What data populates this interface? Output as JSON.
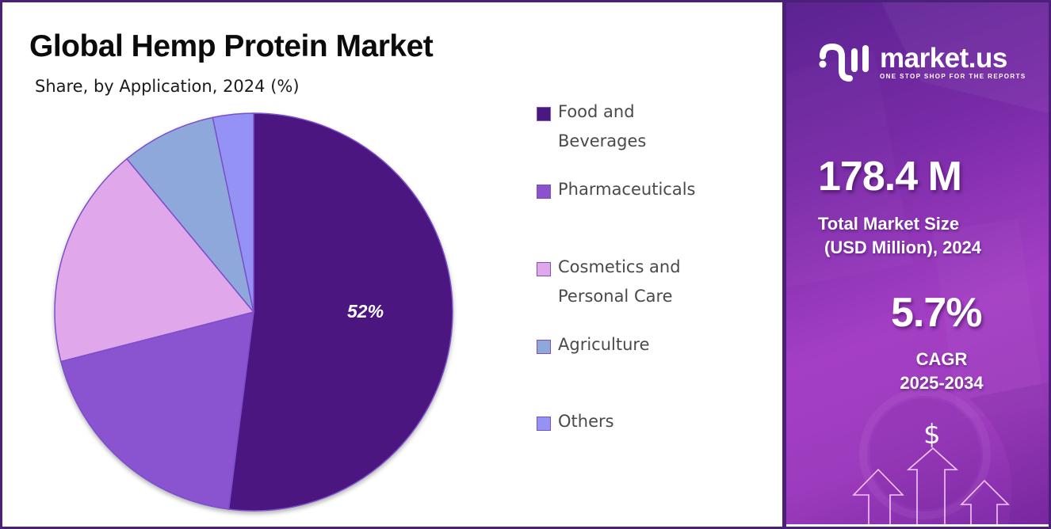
{
  "header": {
    "title": "Global Hemp Protein Market",
    "subtitle": "Share, by Application, 2024 (%)"
  },
  "chart_data": {
    "type": "pie",
    "title": "Global Hemp Protein Market",
    "subtitle": "Share, by Application, 2024 (%)",
    "categories": [
      "Food and Beverages",
      "Pharmaceuticals",
      "Cosmetics and Personal Care",
      "Agriculture",
      "Others"
    ],
    "values": [
      52,
      19,
      18,
      7.7,
      3.3
    ],
    "colors": [
      "#4b1880",
      "#8a52cf",
      "#e0a8ea",
      "#8fa8dc",
      "#9592f5"
    ],
    "data_labels": [
      {
        "category": "Food and Beverages",
        "text": "52%"
      }
    ],
    "start_angle": "12 o'clock, clockwise",
    "legend_position": "right"
  },
  "pie": {
    "label": "52%"
  },
  "legend": {
    "items": [
      {
        "line1": "Food and",
        "line2": "Beverages",
        "color": "#4b1880"
      },
      {
        "line1": "Pharmaceuticals",
        "line2": "",
        "color": "#8a52cf"
      },
      {
        "line1": "Cosmetics and",
        "line2": "Personal Care",
        "color": "#e0a8ea"
      },
      {
        "line1": "Agriculture",
        "line2": "",
        "color": "#8fa8dc"
      },
      {
        "line1": "Others",
        "line2": "",
        "color": "#9592f5"
      }
    ]
  },
  "sidebar": {
    "brand": "market.us",
    "tagline": "ONE STOP SHOP FOR THE REPORTS",
    "market_size": "178.4 M",
    "market_size_label_1": "Total Market Size",
    "market_size_label_2": "(USD Million), 2024",
    "cagr": "5.7%",
    "cagr_label_1": "CAGR",
    "cagr_label_2": "2025-2034",
    "dollar_symbol": "$"
  },
  "colors": {
    "frame": "#4a2079",
    "accent": "#a43fc4"
  }
}
